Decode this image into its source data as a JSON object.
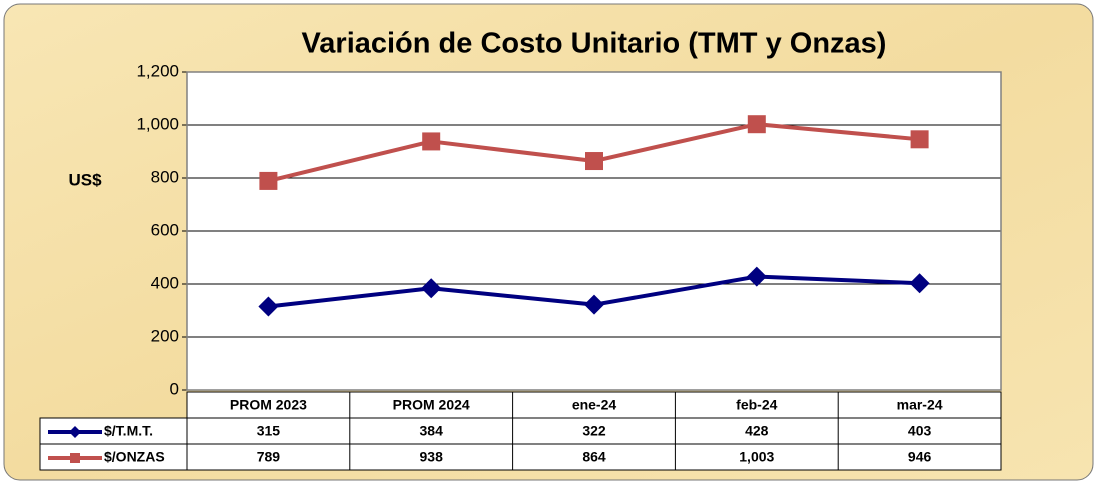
{
  "chart_data": {
    "type": "line",
    "title": "Variación de Costo Unitario (TMT y Onzas)",
    "y_label": "US$",
    "categories": [
      "PROM 2023",
      "PROM 2024",
      "ene-24",
      "feb-24",
      "mar-24"
    ],
    "series": [
      {
        "name": "$/T.M.T.",
        "color": "#000080",
        "marker": "diamond",
        "values": [
          315,
          384,
          322,
          428,
          403
        ]
      },
      {
        "name": "$/ONZAS",
        "color": "#c0504d",
        "marker": "square",
        "values": [
          789,
          938,
          864,
          1003,
          946
        ],
        "value_labels": [
          "789",
          "938",
          "864",
          "1,003",
          "946"
        ]
      }
    ],
    "ylim": [
      0,
      1200
    ],
    "yticks": [
      0,
      200,
      400,
      600,
      800,
      {
        "value": 1000,
        "label": "1,000"
      },
      {
        "value": 1200,
        "label": "1,200"
      }
    ],
    "grid": true
  }
}
